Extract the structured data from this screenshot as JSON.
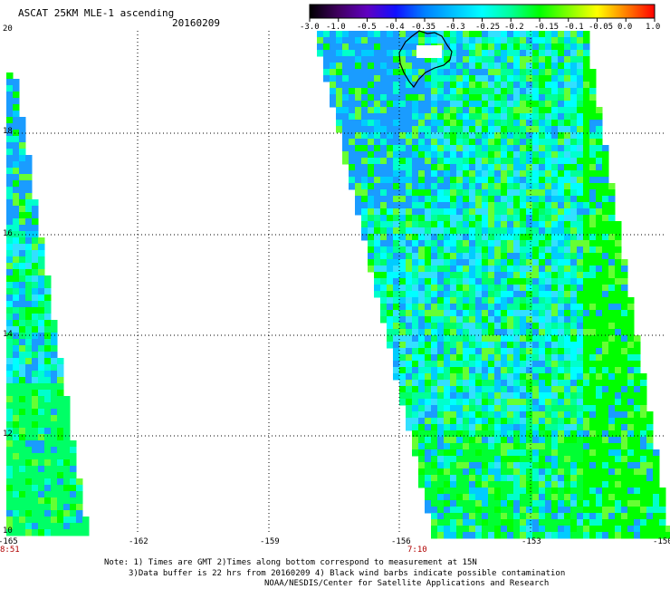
{
  "header": {
    "title": "ASCAT 25KM MLE-1 ascending",
    "date": "20160209"
  },
  "colorbar": {
    "labels": [
      "-3.0",
      "-1.0",
      "-0.5",
      "-0.4",
      "-0.35",
      "-0.3",
      "-0.25",
      "-0.2",
      "-0.15",
      "-0.1",
      "-0.05",
      "0.0",
      "1.0"
    ],
    "colors": [
      "#000000",
      "#400060",
      "#6000c0",
      "#1010ff",
      "#0080ff",
      "#00c0ff",
      "#00ffff",
      "#00ff99",
      "#00ff00",
      "#80ff00",
      "#ffff00",
      "#ff8000",
      "#ff0000"
    ]
  },
  "map": {
    "y_ticks": [
      "20",
      "18",
      "16",
      "14",
      "12",
      "10"
    ],
    "x_ticks": [
      "-165",
      "-162",
      "-159",
      "-156",
      "-153",
      "-150"
    ],
    "time_labels": [
      "8:51",
      "7:10"
    ],
    "lat_range": [
      10,
      20
    ],
    "lon_range": [
      -165,
      -150
    ]
  },
  "footer": {
    "line1": "Note: 1) Times are GMT 2)Times along bottom correspond to measurement at 15N",
    "line2": "3)Data buffer is 22 hrs from 20160209 4) Black wind barbs indicate possible contamination",
    "line3": "NOAA/NESDIS/Center for Satellite Applications and Research"
  }
}
